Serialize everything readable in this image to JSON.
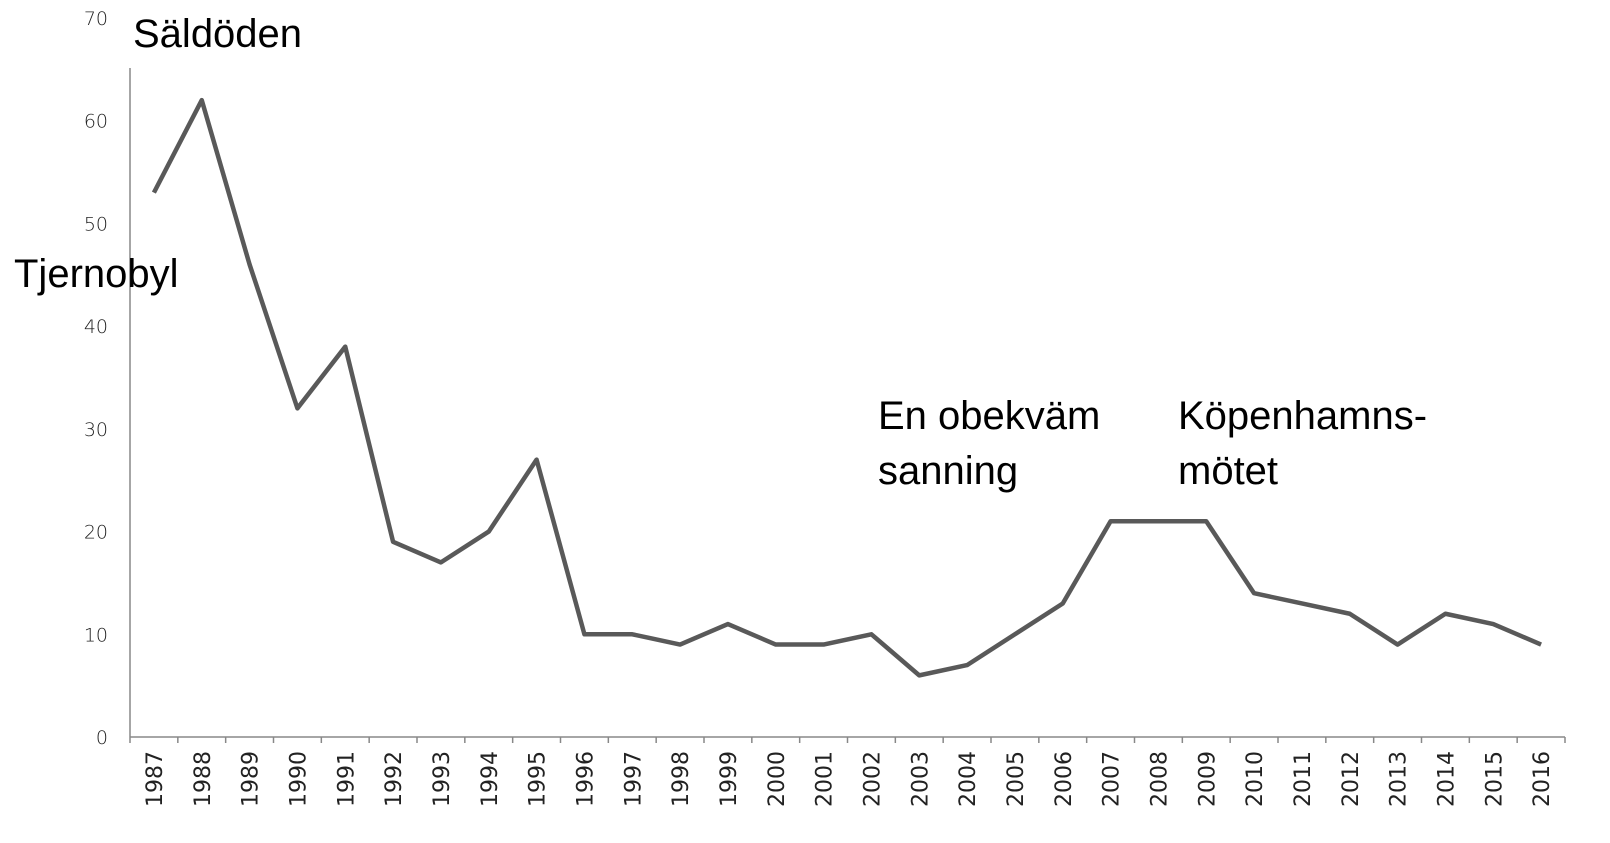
{
  "chart_data": {
    "type": "line",
    "categories": [
      "1987",
      "1988",
      "1989",
      "1990",
      "1991",
      "1992",
      "1993",
      "1994",
      "1995",
      "1996",
      "1997",
      "1998",
      "1999",
      "2000",
      "2001",
      "2002",
      "2003",
      "2004",
      "2005",
      "2006",
      "2007",
      "2008",
      "2009",
      "2010",
      "2011",
      "2012",
      "2013",
      "2014",
      "2015",
      "2016"
    ],
    "values": [
      53,
      62,
      46,
      32,
      38,
      19,
      17,
      20,
      27,
      10,
      10,
      9,
      11,
      9,
      9,
      10,
      6,
      7,
      10,
      13,
      21,
      21,
      21,
      14,
      13,
      12,
      9,
      12,
      11,
      9
    ],
    "color": "#595959",
    "ylim": [
      0,
      70
    ],
    "yticks": [
      0,
      10,
      20,
      30,
      40,
      50,
      60,
      70
    ],
    "grid": false,
    "annotations": [
      [
        "Säldöden"
      ],
      [
        "Tjernobyl"
      ],
      [
        "En obekväm",
        "sanning"
      ],
      [
        "Köpenhamns-",
        "mötet"
      ]
    ]
  }
}
